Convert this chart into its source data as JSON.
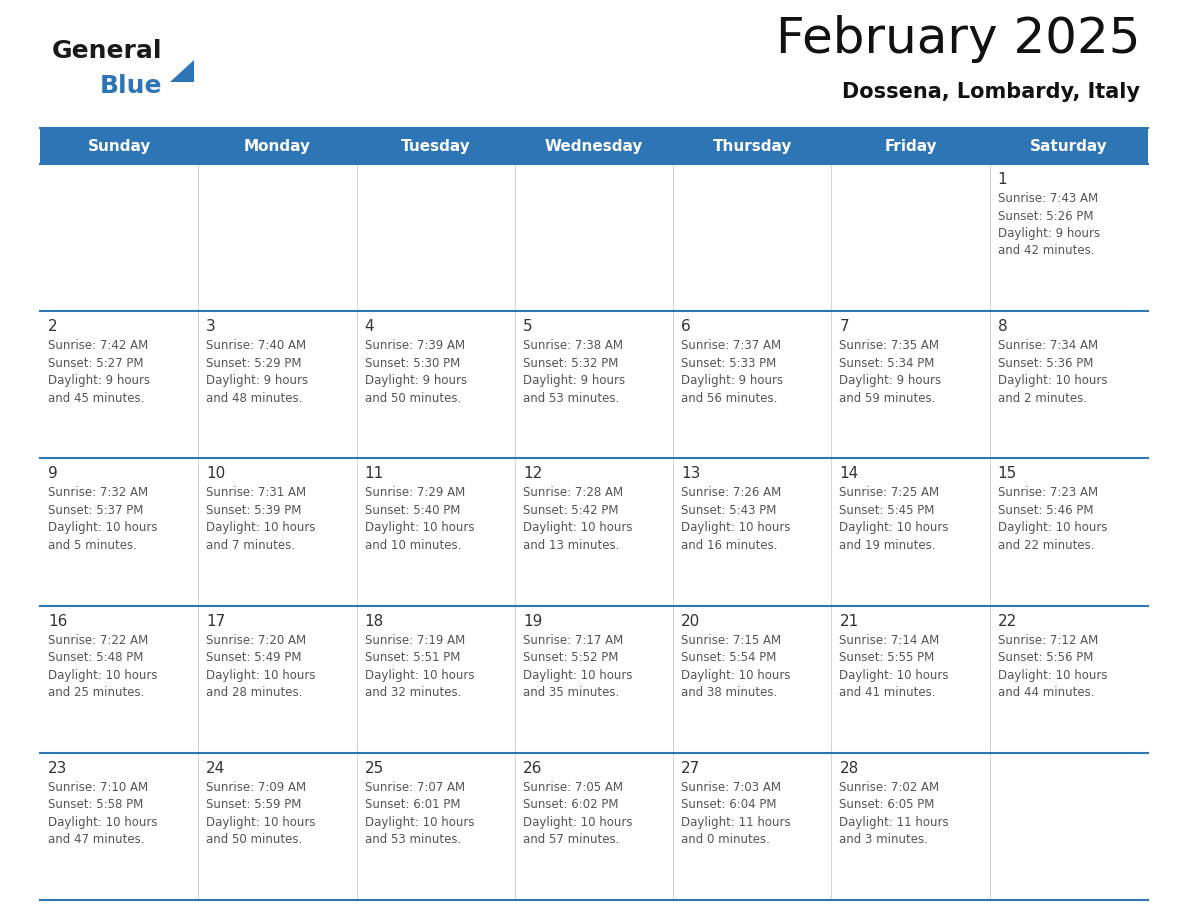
{
  "title": "February 2025",
  "subtitle": "Dossena, Lombardy, Italy",
  "header_bg_color": "#2E75B6",
  "header_text_color": "#FFFFFF",
  "days_of_week": [
    "Sunday",
    "Monday",
    "Tuesday",
    "Wednesday",
    "Thursday",
    "Friday",
    "Saturday"
  ],
  "bg_color": "#FFFFFF",
  "grid_line_color": "#2E75B6",
  "day_number_color": "#333333",
  "info_text_color": "#555555",
  "calendar_data": [
    [
      null,
      null,
      null,
      null,
      null,
      null,
      {
        "day": "1",
        "sunrise": "7:43 AM",
        "sunset": "5:26 PM",
        "daylight": "9 hours",
        "daylight2": "and 42 minutes."
      }
    ],
    [
      {
        "day": "2",
        "sunrise": "7:42 AM",
        "sunset": "5:27 PM",
        "daylight": "9 hours",
        "daylight2": "and 45 minutes."
      },
      {
        "day": "3",
        "sunrise": "7:40 AM",
        "sunset": "5:29 PM",
        "daylight": "9 hours",
        "daylight2": "and 48 minutes."
      },
      {
        "day": "4",
        "sunrise": "7:39 AM",
        "sunset": "5:30 PM",
        "daylight": "9 hours",
        "daylight2": "and 50 minutes."
      },
      {
        "day": "5",
        "sunrise": "7:38 AM",
        "sunset": "5:32 PM",
        "daylight": "9 hours",
        "daylight2": "and 53 minutes."
      },
      {
        "day": "6",
        "sunrise": "7:37 AM",
        "sunset": "5:33 PM",
        "daylight": "9 hours",
        "daylight2": "and 56 minutes."
      },
      {
        "day": "7",
        "sunrise": "7:35 AM",
        "sunset": "5:34 PM",
        "daylight": "9 hours",
        "daylight2": "and 59 minutes."
      },
      {
        "day": "8",
        "sunrise": "7:34 AM",
        "sunset": "5:36 PM",
        "daylight": "10 hours",
        "daylight2": "and 2 minutes."
      }
    ],
    [
      {
        "day": "9",
        "sunrise": "7:32 AM",
        "sunset": "5:37 PM",
        "daylight": "10 hours",
        "daylight2": "and 5 minutes."
      },
      {
        "day": "10",
        "sunrise": "7:31 AM",
        "sunset": "5:39 PM",
        "daylight": "10 hours",
        "daylight2": "and 7 minutes."
      },
      {
        "day": "11",
        "sunrise": "7:29 AM",
        "sunset": "5:40 PM",
        "daylight": "10 hours",
        "daylight2": "and 10 minutes."
      },
      {
        "day": "12",
        "sunrise": "7:28 AM",
        "sunset": "5:42 PM",
        "daylight": "10 hours",
        "daylight2": "and 13 minutes."
      },
      {
        "day": "13",
        "sunrise": "7:26 AM",
        "sunset": "5:43 PM",
        "daylight": "10 hours",
        "daylight2": "and 16 minutes."
      },
      {
        "day": "14",
        "sunrise": "7:25 AM",
        "sunset": "5:45 PM",
        "daylight": "10 hours",
        "daylight2": "and 19 minutes."
      },
      {
        "day": "15",
        "sunrise": "7:23 AM",
        "sunset": "5:46 PM",
        "daylight": "10 hours",
        "daylight2": "and 22 minutes."
      }
    ],
    [
      {
        "day": "16",
        "sunrise": "7:22 AM",
        "sunset": "5:48 PM",
        "daylight": "10 hours",
        "daylight2": "and 25 minutes."
      },
      {
        "day": "17",
        "sunrise": "7:20 AM",
        "sunset": "5:49 PM",
        "daylight": "10 hours",
        "daylight2": "and 28 minutes."
      },
      {
        "day": "18",
        "sunrise": "7:19 AM",
        "sunset": "5:51 PM",
        "daylight": "10 hours",
        "daylight2": "and 32 minutes."
      },
      {
        "day": "19",
        "sunrise": "7:17 AM",
        "sunset": "5:52 PM",
        "daylight": "10 hours",
        "daylight2": "and 35 minutes."
      },
      {
        "day": "20",
        "sunrise": "7:15 AM",
        "sunset": "5:54 PM",
        "daylight": "10 hours",
        "daylight2": "and 38 minutes."
      },
      {
        "day": "21",
        "sunrise": "7:14 AM",
        "sunset": "5:55 PM",
        "daylight": "10 hours",
        "daylight2": "and 41 minutes."
      },
      {
        "day": "22",
        "sunrise": "7:12 AM",
        "sunset": "5:56 PM",
        "daylight": "10 hours",
        "daylight2": "and 44 minutes."
      }
    ],
    [
      {
        "day": "23",
        "sunrise": "7:10 AM",
        "sunset": "5:58 PM",
        "daylight": "10 hours",
        "daylight2": "and 47 minutes."
      },
      {
        "day": "24",
        "sunrise": "7:09 AM",
        "sunset": "5:59 PM",
        "daylight": "10 hours",
        "daylight2": "and 50 minutes."
      },
      {
        "day": "25",
        "sunrise": "7:07 AM",
        "sunset": "6:01 PM",
        "daylight": "10 hours",
        "daylight2": "and 53 minutes."
      },
      {
        "day": "26",
        "sunrise": "7:05 AM",
        "sunset": "6:02 PM",
        "daylight": "10 hours",
        "daylight2": "and 57 minutes."
      },
      {
        "day": "27",
        "sunrise": "7:03 AM",
        "sunset": "6:04 PM",
        "daylight": "11 hours",
        "daylight2": "and 0 minutes."
      },
      {
        "day": "28",
        "sunrise": "7:02 AM",
        "sunset": "6:05 PM",
        "daylight": "11 hours",
        "daylight2": "and 3 minutes."
      },
      null
    ]
  ],
  "logo_text_general": "General",
  "logo_text_blue": "Blue",
  "logo_color_general": "#1a1a1a",
  "logo_color_blue": "#2E75B6",
  "logo_triangle_color": "#2E75B6",
  "title_fontsize": 36,
  "subtitle_fontsize": 15,
  "header_fontsize": 11,
  "day_num_fontsize": 11,
  "info_fontsize": 8.5
}
